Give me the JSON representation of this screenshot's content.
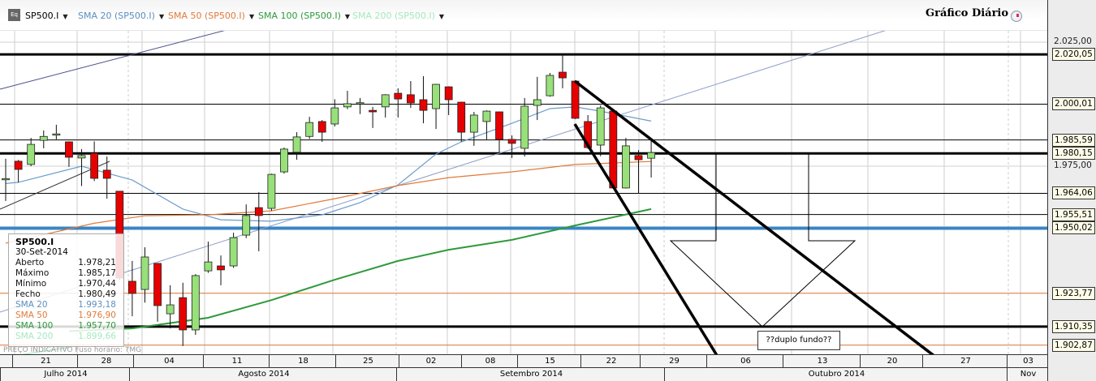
{
  "toolbar": {
    "symbol": "SP500.I",
    "indicators": [
      {
        "label": "SMA 20 (SP500.I)",
        "color": "#5b8fbf"
      },
      {
        "label": "SMA 50 (SP500.I)",
        "color": "#e07a3a"
      },
      {
        "label": "SMA 100 (SP500.I)",
        "color": "#2e9a3c"
      },
      {
        "label": "SMA 200 (SP500.I)",
        "color": "#a6e8c0"
      }
    ],
    "dropdown_icon": "triangle-down",
    "symbol_icon": "equity-icon"
  },
  "title": "Gráfico Diário",
  "legend": {
    "symbol": "SP500.I",
    "date": "30-Set-2014",
    "rows": [
      {
        "label": "Aberto",
        "value": "1.978,21",
        "color": "#111"
      },
      {
        "label": "Máximo",
        "value": "1.985,17",
        "color": "#111"
      },
      {
        "label": "Mínimo",
        "value": "1.970,44",
        "color": "#111"
      },
      {
        "label": "Fecho",
        "value": "1.980,49",
        "color": "#111"
      },
      {
        "label": "SMA 20",
        "value": "1.993,18",
        "color": "#5b8fbf"
      },
      {
        "label": "SMA 50",
        "value": "1.976,90",
        "color": "#e07a3a"
      },
      {
        "label": "SMA 100",
        "value": "1.957,70",
        "color": "#2e9a3c"
      },
      {
        "label": "SMA 200",
        "value": "1.899,66",
        "color": "#a6e8c0"
      }
    ]
  },
  "watermark": "PREÇO INDICATIVO   Fuso horário: TMG",
  "annotation": "??duplo fundo??",
  "chart_data": {
    "type": "candlestick",
    "ylim": [
      1901,
      2040
    ],
    "y_ticks": [
      {
        "value": 2025,
        "label": "2.025,00"
      },
      {
        "value": 1975,
        "label": "1.975,00"
      }
    ],
    "levels": [
      {
        "value": 2020.05,
        "label": "2.020,05",
        "style": "thick",
        "color": "#000"
      },
      {
        "value": 2000.01,
        "label": "2.000,01",
        "style": "thin",
        "color": "#000"
      },
      {
        "value": 1985.59,
        "label": "1.985,59",
        "style": "thin",
        "color": "#000"
      },
      {
        "value": 1980.15,
        "label": "1.980,15",
        "style": "thick",
        "color": "#000"
      },
      {
        "value": 1964.06,
        "label": "1.964,06",
        "style": "thin",
        "color": "#000"
      },
      {
        "value": 1955.51,
        "label": "1.955,51",
        "style": "thin",
        "color": "#000"
      },
      {
        "value": 1950.02,
        "label": "1.950,02",
        "style": "thick",
        "color": "#3a85c4"
      },
      {
        "value": 1923.77,
        "label": "1.923,77",
        "style": "thin",
        "color": "#d9742e"
      },
      {
        "value": 1910.35,
        "label": "1.910,35",
        "style": "thick",
        "color": "#000"
      },
      {
        "value": 1902.87,
        "label": "1.902,87",
        "style": "thin",
        "color": "#d9742e"
      }
    ],
    "up_color": "#98e07a",
    "down_color": "#e60000",
    "candles": [
      [
        "2014-07-18",
        1970,
        1978,
        1961,
        1970
      ],
      [
        "2014-07-21",
        1977,
        1977.5,
        1968.5,
        1973.7
      ],
      [
        "2014-07-22",
        1975.7,
        1986.4,
        1975,
        1983.8
      ],
      [
        "2014-07-23",
        1985.4,
        1989.4,
        1982.2,
        1987
      ],
      [
        "2014-07-24",
        1988,
        1991.7,
        1985.8,
        1988
      ],
      [
        "2014-07-25",
        1984.8,
        1985,
        1974.7,
        1978.6
      ],
      [
        "2014-07-28",
        1978.3,
        1981.9,
        1967,
        1979.3
      ],
      [
        "2014-07-29",
        1980.2,
        1985,
        1969,
        1970.1
      ],
      [
        "2014-07-30",
        1973.4,
        1978.9,
        1961.9,
        1970.1
      ],
      [
        "2014-07-31",
        1964.9,
        1965,
        1929,
        1929.9
      ],
      [
        "2014-08-01",
        1928.6,
        1936.8,
        1914.5,
        1923.7
      ],
      [
        "2014-08-04",
        1925.3,
        1942.3,
        1920,
        1938.4
      ],
      [
        "2014-08-05",
        1935.8,
        1936,
        1912.3,
        1918.8
      ],
      [
        "2014-08-06",
        1915.5,
        1927,
        1909.6,
        1919.1
      ],
      [
        "2014-08-07",
        1922,
        1928,
        1902.5,
        1909
      ],
      [
        "2014-08-08",
        1909,
        1931.5,
        1907,
        1930.9
      ],
      [
        "2014-08-11",
        1932.8,
        1944.6,
        1932,
        1936.4
      ],
      [
        "2014-08-12",
        1934.8,
        1939,
        1927,
        1933.2
      ],
      [
        "2014-08-13",
        1934.8,
        1948.2,
        1934,
        1946.2
      ],
      [
        "2014-08-14",
        1947.2,
        1959.6,
        1946,
        1955.1
      ],
      [
        "2014-08-15",
        1958.3,
        1964.5,
        1940.7,
        1955.1
      ],
      [
        "2014-08-18",
        1958,
        1972,
        1957,
        1971.7
      ],
      [
        "2014-08-19",
        1972.7,
        1982.5,
        1972,
        1981.9
      ],
      [
        "2014-08-20",
        1980.6,
        1988.7,
        1977.6,
        1986.8
      ],
      [
        "2014-08-21",
        1987,
        1994.9,
        1986,
        1992.6
      ],
      [
        "2014-08-22",
        1993,
        1993.6,
        1984.8,
        1988.7
      ],
      [
        "2014-08-25",
        1992,
        2002,
        1991,
        1998.5
      ],
      [
        "2014-08-26",
        1998.9,
        2005.4,
        1998,
        2000.2
      ],
      [
        "2014-08-27",
        2000.4,
        2002.5,
        1996,
        2000.6
      ],
      [
        "2014-08-28",
        1997.5,
        1998.9,
        1990.4,
        1996.9
      ],
      [
        "2014-08-29",
        1998.9,
        2004,
        1994.6,
        2003.8
      ],
      [
        "2014-09-02",
        2004.4,
        2006.4,
        1994.6,
        2002.1
      ],
      [
        "2014-09-03",
        2003.8,
        2009.3,
        1998.5,
        2000.5
      ],
      [
        "2014-09-04",
        2001.8,
        2011.3,
        1992.3,
        1997.5
      ],
      [
        "2014-09-05",
        1998.2,
        2008.2,
        1990,
        2008
      ],
      [
        "2014-09-08",
        2007,
        2007.2,
        1995.6,
        2001.8
      ],
      [
        "2014-09-09",
        2000.8,
        2001,
        1984.8,
        1988.7
      ],
      [
        "2014-09-10",
        1988.7,
        1996.9,
        1983.2,
        1995.6
      ],
      [
        "2014-09-11",
        1993,
        1997.5,
        1985.8,
        1997.2
      ],
      [
        "2014-09-12",
        1996.9,
        1997,
        1980.6,
        1985.8
      ],
      [
        "2014-09-15",
        1985.8,
        1987.4,
        1978.3,
        1984.2
      ],
      [
        "2014-09-16",
        1982.2,
        2002.5,
        1978.9,
        1999.2
      ],
      [
        "2014-09-17",
        1999.5,
        2011,
        1993.6,
        2001.8
      ],
      [
        "2014-09-18",
        2003.4,
        2012.6,
        2003,
        2011.6
      ],
      [
        "2014-09-19",
        2012.9,
        2020,
        2006.4,
        2010.6
      ],
      [
        "2014-09-22",
        2009.3,
        2009.5,
        1994,
        1994.3
      ],
      [
        "2014-09-23",
        1993,
        1995.6,
        1982,
        1982.5
      ],
      [
        "2014-09-24",
        1983.5,
        1999.5,
        1979,
        1998.5
      ],
      [
        "2014-09-25",
        1997.2,
        1997.5,
        1966,
        1966.2
      ],
      [
        "2014-09-26",
        1966.2,
        1986.4,
        1966,
        1983.2
      ],
      [
        "2014-09-29",
        1979.3,
        1981.5,
        1963.9,
        1977.6
      ],
      [
        "2014-09-30",
        1978.21,
        1985.17,
        1970.44,
        1980.49
      ]
    ],
    "sma": [
      {
        "name": "SMA 20",
        "color": "#6a9ccc",
        "points": [
          [
            "2014-07-18",
            1968
          ],
          [
            "2014-07-21",
            1968.5
          ],
          [
            "2014-07-28",
            1975
          ],
          [
            "2014-08-01",
            1969.4
          ],
          [
            "2014-08-07",
            1957.7
          ],
          [
            "2014-08-12",
            1953.4
          ],
          [
            "2014-08-18",
            1952.8
          ],
          [
            "2014-08-22",
            1955.4
          ],
          [
            "2014-08-27",
            1960.3
          ],
          [
            "2014-09-02",
            1967.5
          ],
          [
            "2014-09-05",
            1979.9
          ],
          [
            "2014-09-09",
            1984.8
          ],
          [
            "2014-09-15",
            1992.3
          ],
          [
            "2014-09-18",
            1998.2
          ],
          [
            "2014-09-22",
            1998.9
          ],
          [
            "2014-09-24",
            1997.2
          ],
          [
            "2014-09-30",
            1993.18
          ]
        ]
      },
      {
        "name": "SMA 50",
        "color": "#e07a3a",
        "points": [
          [
            "2014-07-18",
            1944
          ],
          [
            "2014-07-29",
            1952
          ],
          [
            "2014-08-04",
            1955
          ],
          [
            "2014-08-11",
            1955.4
          ],
          [
            "2014-08-18",
            1957
          ],
          [
            "2014-08-25",
            1961.9
          ],
          [
            "2014-09-02",
            1967.2
          ],
          [
            "2014-09-08",
            1970.4
          ],
          [
            "2014-09-15",
            1972.7
          ],
          [
            "2014-09-22",
            1975.7
          ],
          [
            "2014-09-30",
            1976.9
          ]
        ]
      },
      {
        "name": "SMA 100",
        "color": "#2e9a3c",
        "points": [
          [
            "2014-07-25",
            1908.5
          ],
          [
            "2014-08-01",
            1909.6
          ],
          [
            "2014-08-11",
            1913.9
          ],
          [
            "2014-08-18",
            1921
          ],
          [
            "2014-08-25",
            1929.2
          ],
          [
            "2014-09-02",
            1936.8
          ],
          [
            "2014-09-08",
            1941.3
          ],
          [
            "2014-09-15",
            1945.3
          ],
          [
            "2014-09-22",
            1951.1
          ],
          [
            "2014-09-30",
            1957.7
          ]
        ]
      },
      {
        "name": "SMA 200",
        "color": "#a6e8c0",
        "points": [
          [
            "2014-07-18",
            1898
          ],
          [
            "2014-07-25",
            1902
          ]
        ]
      }
    ],
    "x_week_labels": [
      "21",
      "28",
      "04",
      "11",
      "18",
      "25",
      "02",
      "08",
      "15",
      "22",
      "29",
      "06",
      "13",
      "20",
      "27",
      "03"
    ],
    "x_month_labels": [
      "Julho 2014",
      "Agosto 2014",
      "Setembro 2014",
      "Outubro 2014",
      "Nov"
    ]
  }
}
